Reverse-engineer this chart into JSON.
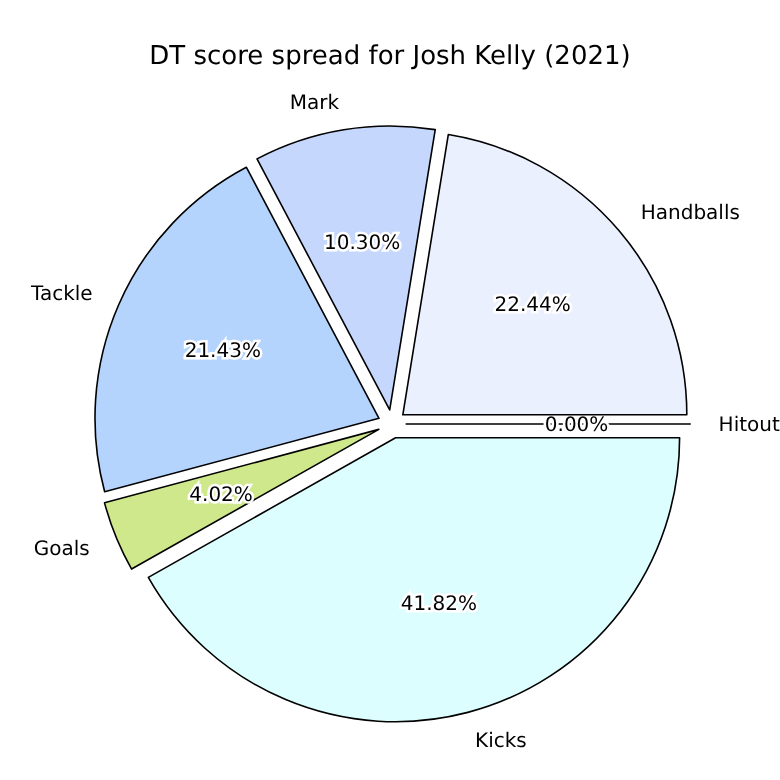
{
  "chart_data": {
    "type": "pie",
    "title": "DT score spread for Josh Kelly (2021)",
    "categories": [
      "Hitout",
      "Handballs",
      "Mark",
      "Tackle",
      "Goals",
      "Kicks"
    ],
    "values": [
      0.0,
      22.44,
      10.3,
      21.43,
      4.02,
      41.82
    ],
    "value_labels": [
      "0.00%",
      "22.44%",
      "10.30%",
      "21.43%",
      "4.02%",
      "41.82%"
    ],
    "colors": [
      "#f0f8ff",
      "#eaf0fe",
      "#c6d7fe",
      "#b4d4fe",
      "#cfe88c",
      "#dcfefe"
    ]
  }
}
